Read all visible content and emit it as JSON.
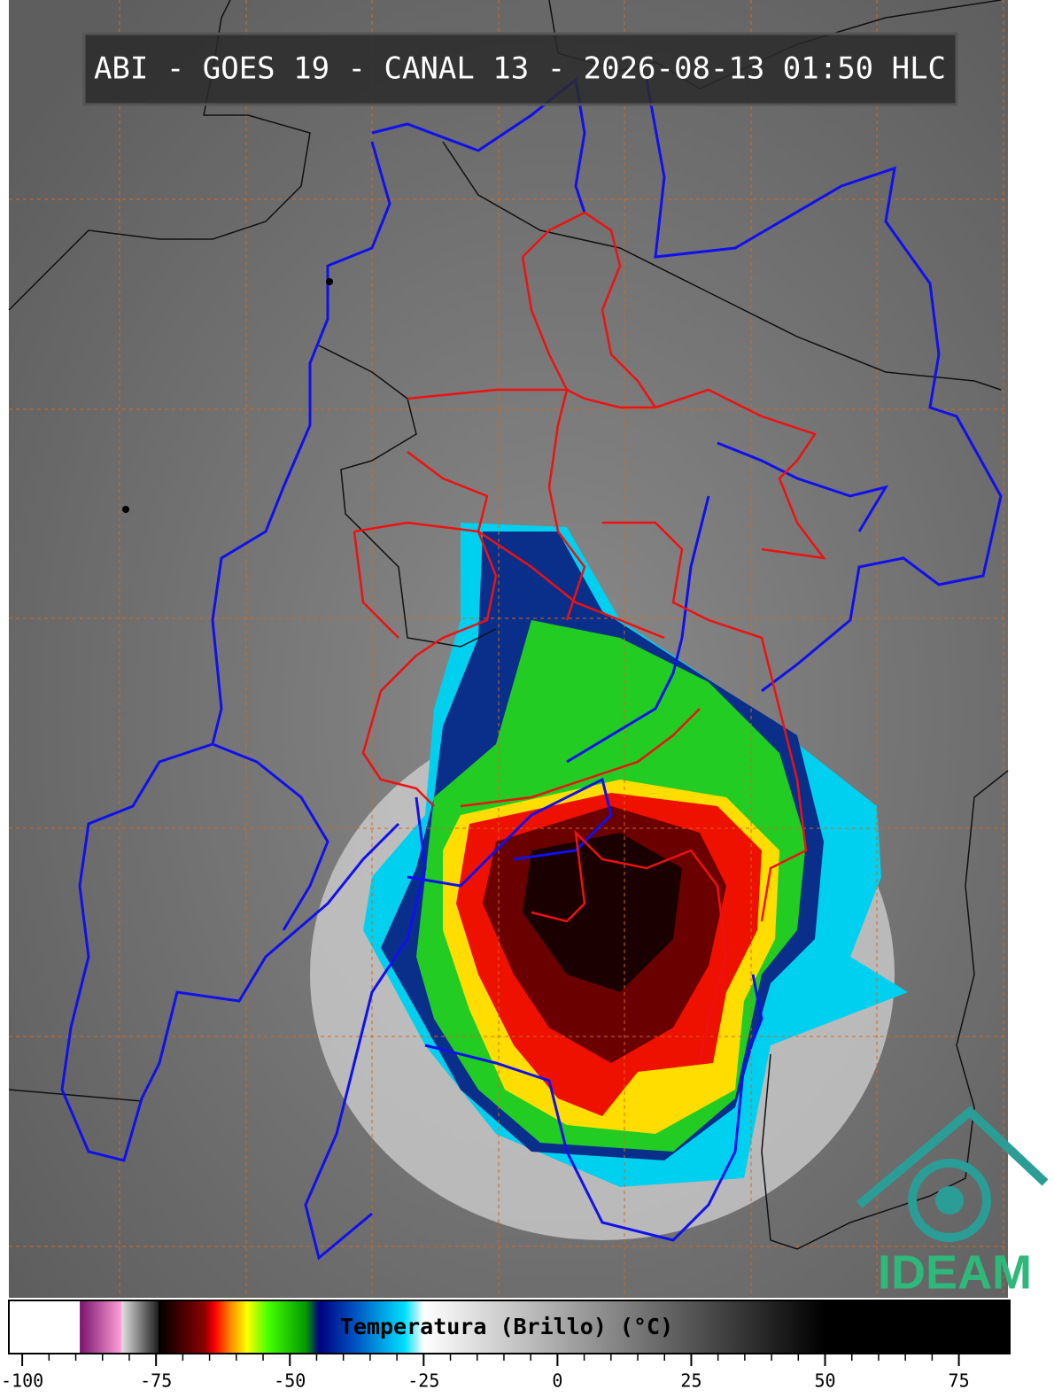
{
  "title": "ABI - GOES 19 - CANAL 13 - 2026-08-13 01:50 HLC",
  "colorbar": {
    "label": "Temperatura (Brillo) (°C)",
    "xlim": [
      -102.5,
      84.5
    ],
    "xticks": [
      -100,
      -75,
      -50,
      -25,
      0,
      25,
      50,
      75
    ],
    "colormap": [
      {
        "value": -102.5,
        "color": "#ffffff"
      },
      {
        "value": -89.3,
        "color": "#ffffff"
      },
      {
        "value": -89.2,
        "color": "#7a1470"
      },
      {
        "value": -81.5,
        "color": "#ff9ed8"
      },
      {
        "value": -81.4,
        "color": "#e0e0e0"
      },
      {
        "value": -74.6,
        "color": "#202020"
      },
      {
        "value": -74.5,
        "color": "#000000"
      },
      {
        "value": -66,
        "color": "#8b0000"
      },
      {
        "value": -64,
        "color": "#ff0000"
      },
      {
        "value": -61,
        "color": "#ff8c00"
      },
      {
        "value": -58,
        "color": "#ffff00"
      },
      {
        "value": -54,
        "color": "#44ff00"
      },
      {
        "value": -47,
        "color": "#009900"
      },
      {
        "value": -44.5,
        "color": "#000080"
      },
      {
        "value": -38,
        "color": "#0050c0"
      },
      {
        "value": -28.5,
        "color": "#00e0ff"
      },
      {
        "value": -25,
        "color": "#ffffff"
      },
      {
        "value": 50,
        "color": "#000000"
      },
      {
        "value": 84.5,
        "color": "#000000"
      }
    ]
  },
  "logo": "IDEAM"
}
